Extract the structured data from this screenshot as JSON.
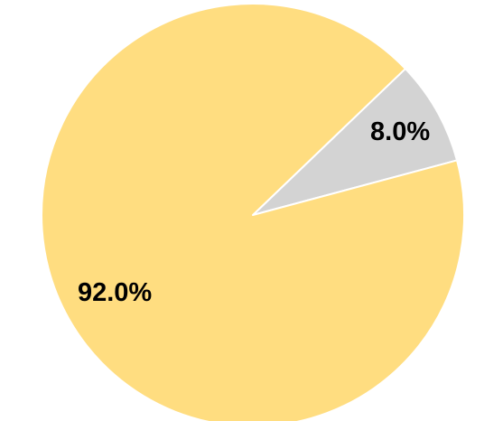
{
  "chart_data": {
    "type": "pie",
    "slices": [
      {
        "value": 8.0,
        "label": "8.0%",
        "color": "#d3d3d3"
      },
      {
        "value": 92.0,
        "label": "92.0%",
        "color": "#ffdd80"
      }
    ],
    "start_angle_deg": 15,
    "direction": "counterclockwise",
    "title": "",
    "legend": "none"
  }
}
